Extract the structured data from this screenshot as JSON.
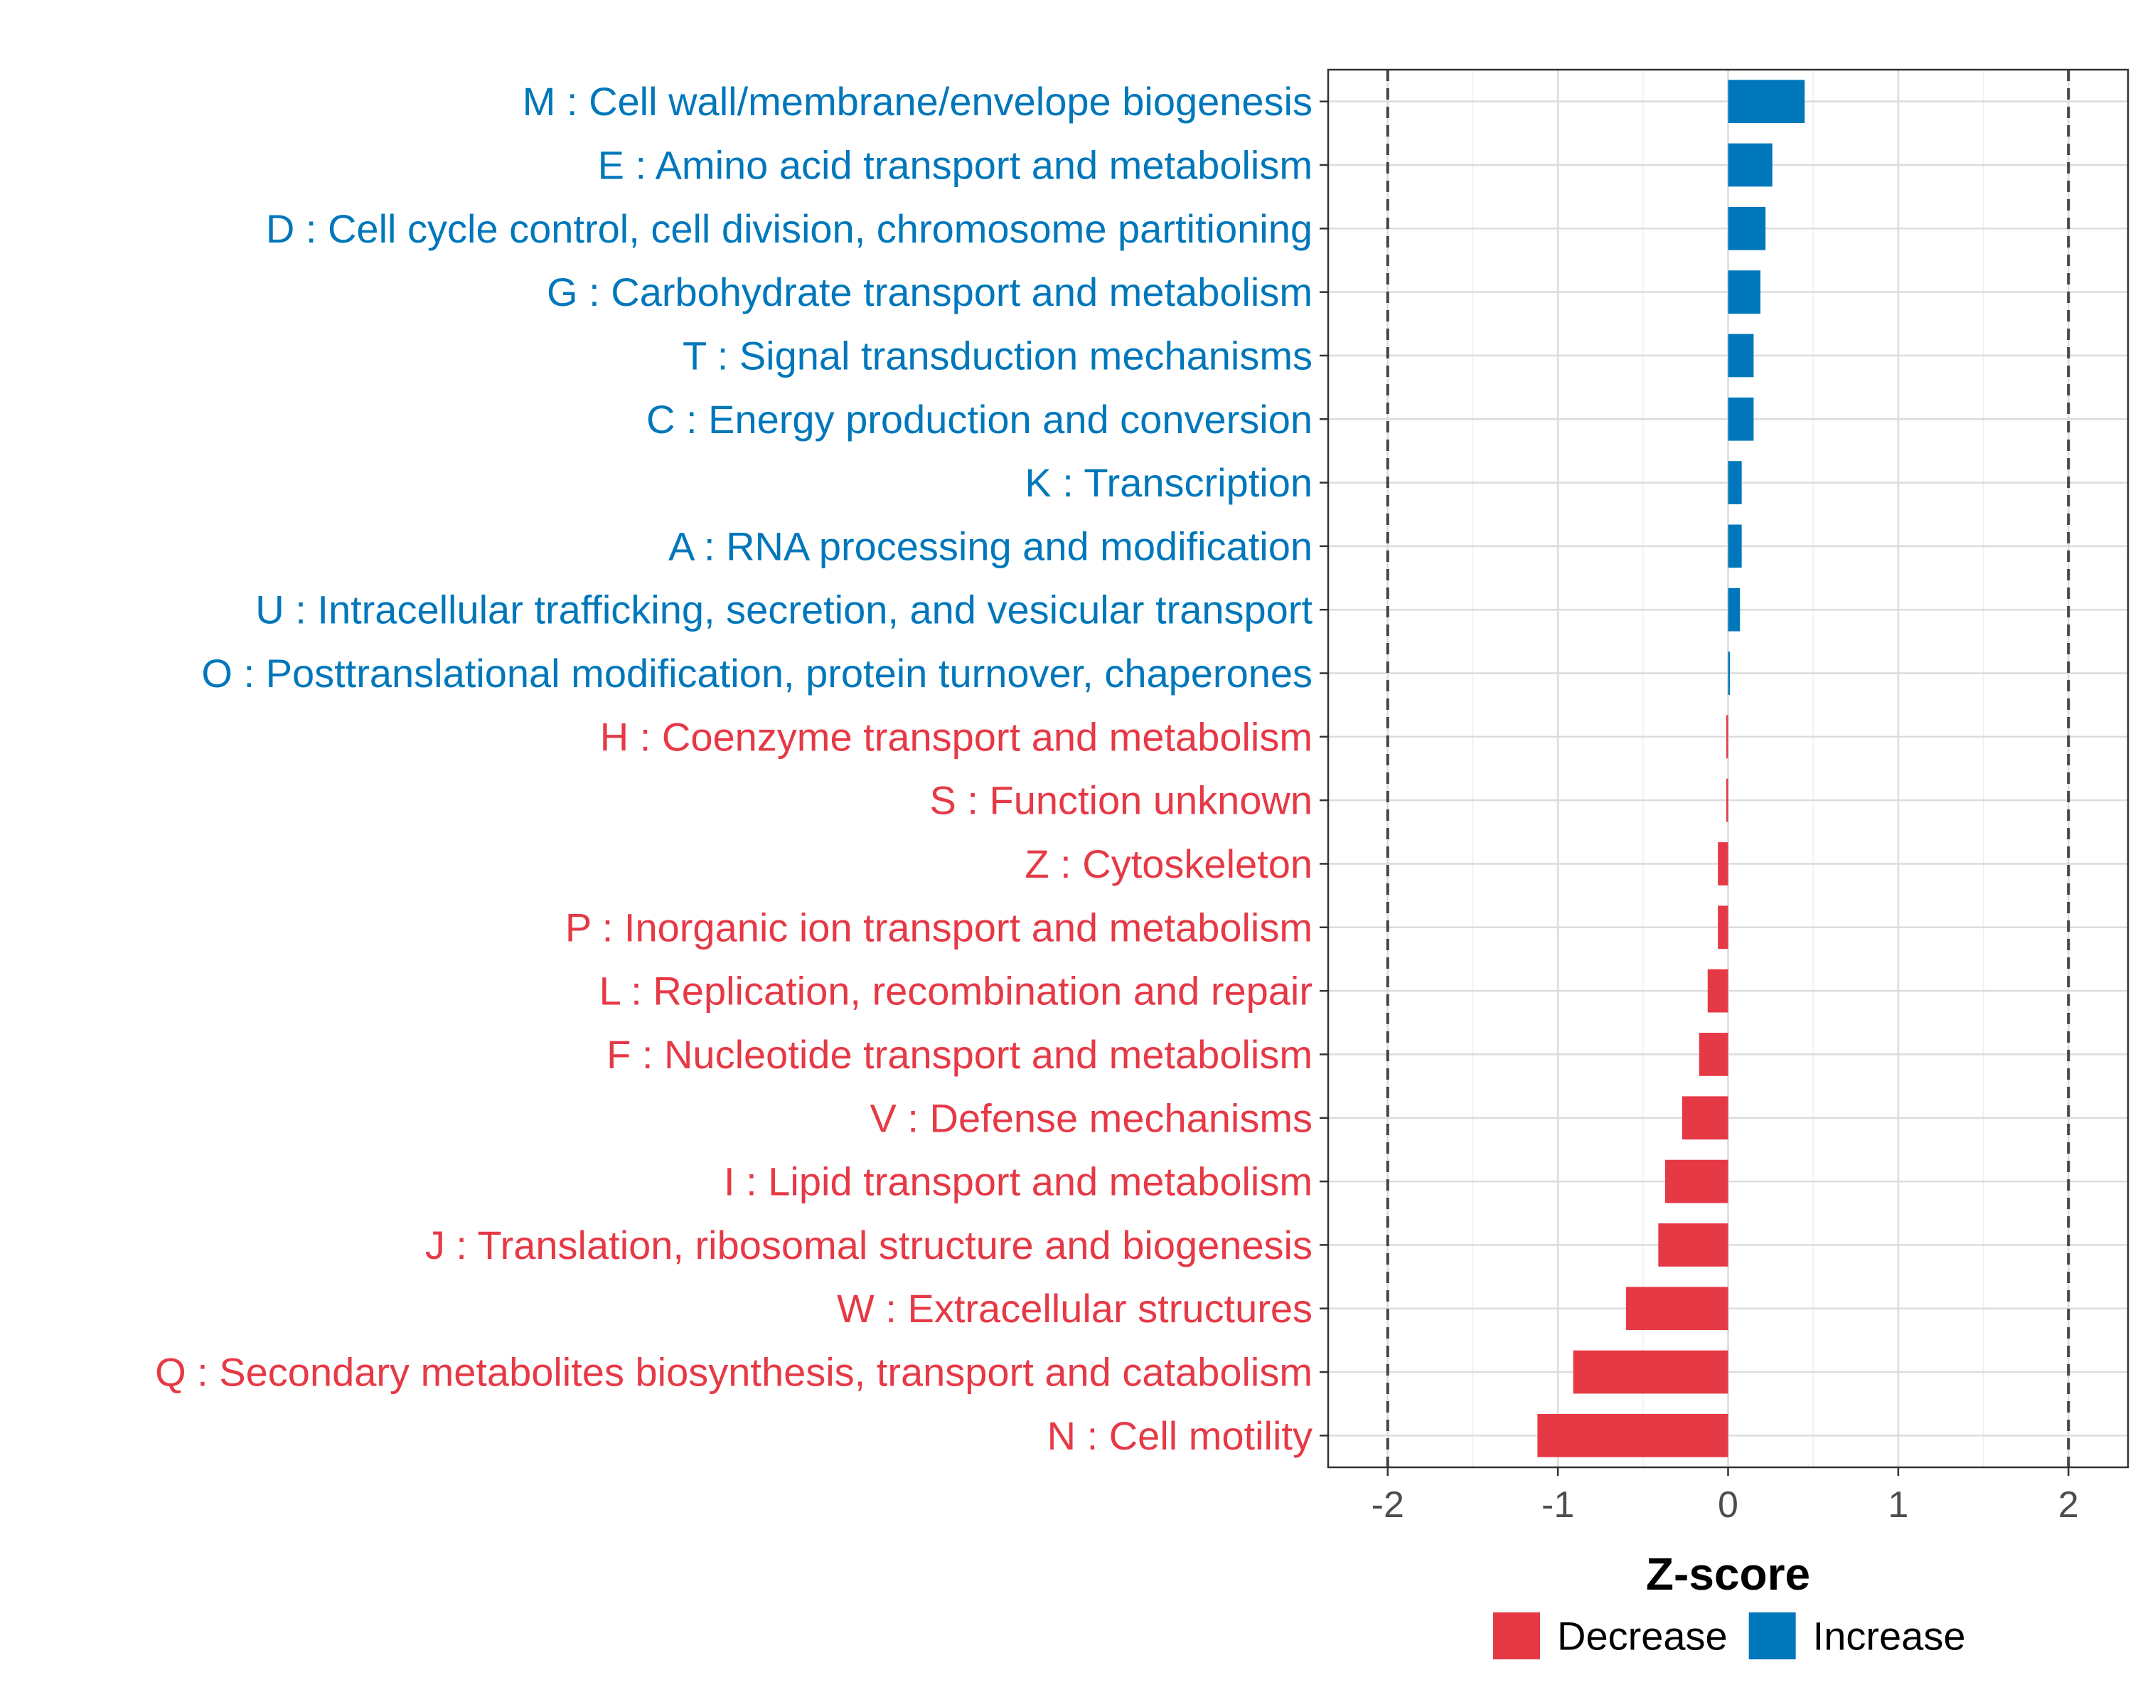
{
  "chart_data": {
    "type": "bar",
    "orientation": "horizontal",
    "title": "",
    "xlabel": "Z-score",
    "ylabel": "",
    "xlim": [
      -2.35,
      2.35
    ],
    "xticks": [
      -2,
      -1,
      0,
      1,
      2
    ],
    "xtick_labels": [
      "-2",
      "-1",
      "0",
      "1",
      "2"
    ],
    "reference_lines": [
      -2,
      2
    ],
    "grid": true,
    "legend_position": "bottom",
    "colors": {
      "Decrease": "#E63946",
      "Increase": "#0077BB"
    },
    "legend": [
      {
        "name": "Decrease",
        "color": "#E63946"
      },
      {
        "name": "Increase",
        "color": "#0077BB"
      }
    ],
    "categories": [
      "M : Cell wall/membrane/envelope biogenesis",
      "E : Amino acid transport and metabolism",
      "D : Cell cycle control, cell division, chromosome partitioning",
      "G : Carbohydrate transport and metabolism",
      "T : Signal transduction mechanisms",
      "C : Energy production and conversion",
      "K : Transcription",
      "A : RNA processing and modification",
      "U : Intracellular trafficking, secretion, and vesicular transport",
      "O : Posttranslational modification, protein turnover, chaperones",
      "H : Coenzyme transport and metabolism",
      "S : Function unknown",
      "Z : Cytoskeleton",
      "P : Inorganic ion transport and metabolism",
      "L : Replication, recombination and repair",
      "F : Nucleotide transport and metabolism",
      "V : Defense mechanisms",
      "I : Lipid transport and metabolism",
      "J : Translation, ribosomal structure and biogenesis",
      "W : Extracellular structures",
      "Q : Secondary metabolites biosynthesis, transport and catabolism",
      "N : Cell motility"
    ],
    "values": [
      0.45,
      0.26,
      0.22,
      0.19,
      0.15,
      0.15,
      0.08,
      0.08,
      0.07,
      0.005,
      -0.005,
      -0.01,
      -0.06,
      -0.06,
      -0.12,
      -0.17,
      -0.27,
      -0.37,
      -0.41,
      -0.6,
      -0.91,
      -1.12
    ],
    "direction": [
      "Increase",
      "Increase",
      "Increase",
      "Increase",
      "Increase",
      "Increase",
      "Increase",
      "Increase",
      "Increase",
      "Increase",
      "Decrease",
      "Decrease",
      "Decrease",
      "Decrease",
      "Decrease",
      "Decrease",
      "Decrease",
      "Decrease",
      "Decrease",
      "Decrease",
      "Decrease",
      "Decrease"
    ]
  }
}
